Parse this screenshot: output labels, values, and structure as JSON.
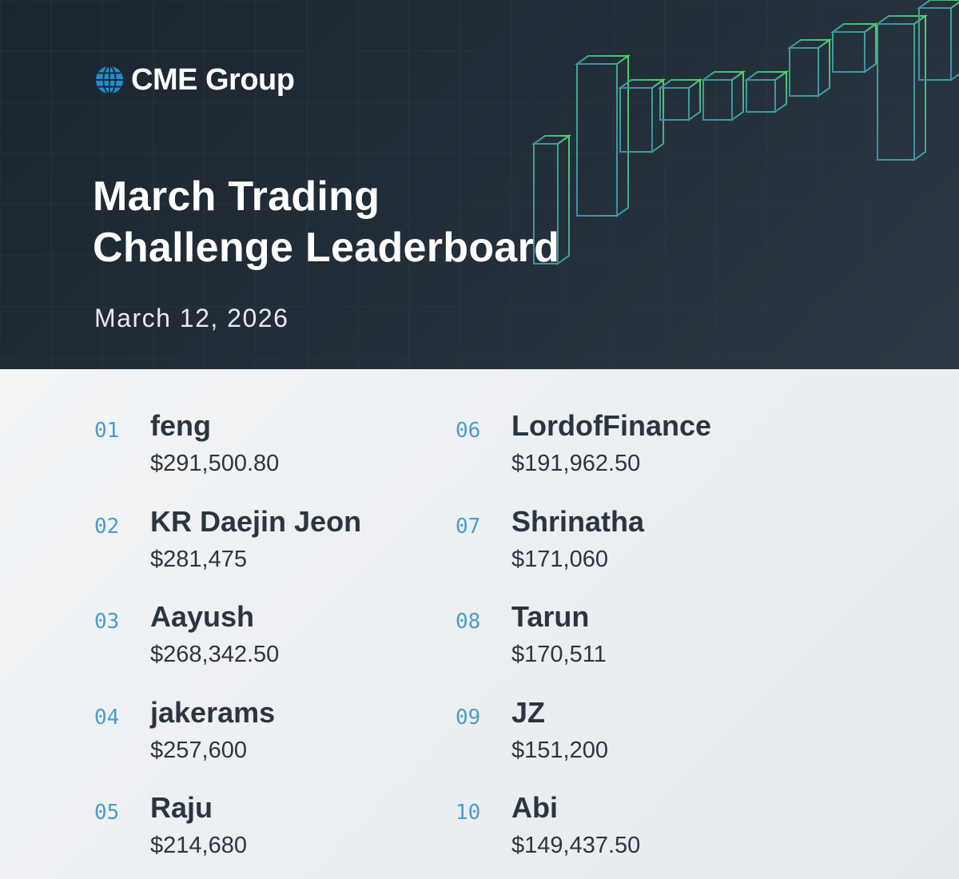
{
  "brand": {
    "name": "CME Group",
    "logo_icon": "globe-icon",
    "logo_color": "#1f8fd0"
  },
  "header": {
    "title_line1": "March Trading",
    "title_line2": "Challenge Leaderboard",
    "date": "March 12, 2026"
  },
  "leaderboard": {
    "left": [
      {
        "rank": "01",
        "name": "feng",
        "amount": "$291,500.80"
      },
      {
        "rank": "02",
        "name": "KR Daejin Jeon",
        "amount": "$281,475"
      },
      {
        "rank": "03",
        "name": "Aayush",
        "amount": "$268,342.50"
      },
      {
        "rank": "04",
        "name": "jakerams",
        "amount": "$257,600"
      },
      {
        "rank": "05",
        "name": "Raju",
        "amount": "$214,680"
      }
    ],
    "right": [
      {
        "rank": "06",
        "name": "LordofFinance",
        "amount": "$191,962.50"
      },
      {
        "rank": "07",
        "name": "Shrinatha",
        "amount": "$171,060"
      },
      {
        "rank": "08",
        "name": "Tarun",
        "amount": "$170,511"
      },
      {
        "rank": "09",
        "name": "JZ",
        "amount": "$151,200"
      },
      {
        "rank": "10",
        "name": "Abi",
        "amount": "$149,437.50"
      }
    ]
  },
  "colors": {
    "header_bg": "#1e2934",
    "board_bg": "#eef1f3",
    "rank": "#4a9cc7",
    "text": "#2b353f",
    "candle_blue": "#3f8ea8",
    "candle_green": "#4fcf6a"
  }
}
